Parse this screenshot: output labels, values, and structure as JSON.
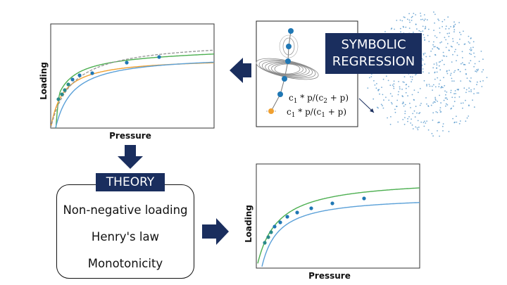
{
  "labels": {
    "symbolic_regression_line1": "SYMBOLIC",
    "symbolic_regression_line2": "REGRESSION",
    "theory": "THEORY"
  },
  "theory_principles": [
    {
      "label": "Non-negative loading"
    },
    {
      "label": "Henry's law"
    },
    {
      "label": "Monotonicity"
    }
  ],
  "expressions": {
    "expr1": {
      "prefix": "c",
      "sub1": "1",
      "mid": " * p/(c",
      "sub2": "2",
      "suffix": " + p)"
    },
    "expr2": {
      "prefix": "c",
      "sub1": "1",
      "mid": " * p/(c",
      "sub2": "1",
      "suffix": " + p)"
    }
  },
  "colors": {
    "navy": "#1a2e5e",
    "curve_green": "#4caf50",
    "curve_orange": "#f0a030",
    "curve_blue": "#5aa0d8",
    "curve_gray_dashed": "#999999",
    "marker_blue": "#1f77b4",
    "marker_teal": "#2a8a8a"
  },
  "plot_top": {
    "xlabel": "Pressure",
    "ylabel": "Loading",
    "series": [
      {
        "color": "green"
      },
      {
        "color": "orange"
      },
      {
        "color": "blue"
      },
      {
        "color": "gray-dashed"
      }
    ]
  },
  "plot_bottom": {
    "xlabel": "Pressure",
    "ylabel": "Loading",
    "series": [
      {
        "color": "green"
      },
      {
        "color": "blue"
      }
    ]
  }
}
